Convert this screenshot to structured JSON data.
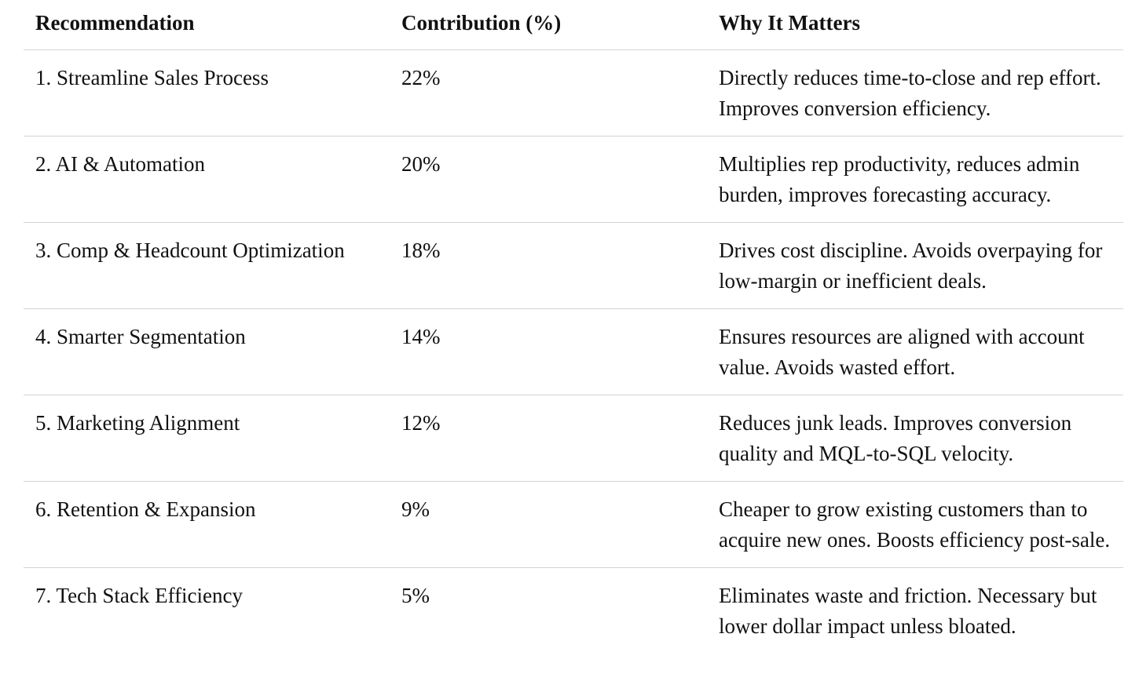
{
  "table": {
    "headers": {
      "recommendation": "Recommendation",
      "contribution": "Contribution (%)",
      "why": "Why It Matters"
    },
    "rows": [
      {
        "recommendation": "1. Streamline Sales Process",
        "contribution": "22%",
        "why": "Directly reduces time-to-close and rep effort. Improves conversion efficiency."
      },
      {
        "recommendation": "2. AI & Automation",
        "contribution": "20%",
        "why": "Multiplies rep productivity, reduces admin burden, improves forecasting accuracy."
      },
      {
        "recommendation": "3. Comp & Headcount Optimization",
        "contribution": "18%",
        "why": "Drives cost discipline. Avoids overpaying for low-margin or inefficient deals."
      },
      {
        "recommendation": "4. Smarter Segmentation",
        "contribution": "14%",
        "why": "Ensures resources are aligned with account value. Avoids wasted effort."
      },
      {
        "recommendation": "5. Marketing Alignment",
        "contribution": "12%",
        "why": "Reduces junk leads. Improves conversion quality and MQL-to-SQL velocity."
      },
      {
        "recommendation": "6. Retention & Expansion",
        "contribution": "9%",
        "why": "Cheaper to grow existing customers than to acquire new ones. Boosts efficiency post-sale."
      },
      {
        "recommendation": "7. Tech Stack Efficiency",
        "contribution": "5%",
        "why": "Eliminates waste and friction. Necessary but lower dollar impact unless bloated."
      }
    ]
  }
}
